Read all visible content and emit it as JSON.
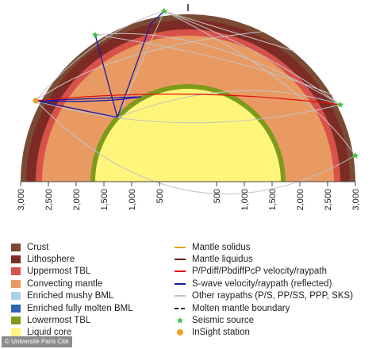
{
  "colors": {
    "crust": "#7a4a35",
    "lithosphere": "#7d2b25",
    "uppermost_tbl": "#d8524a",
    "convecting_mantle": "#e99a62",
    "enriched_mushy_bml": "#a9d2ea",
    "enriched_molten_bml": "#2d63b0",
    "lowermost_tbl": "#7e9a1b",
    "liquid_core": "#fff57a",
    "solidus": "#e8a020",
    "liquidus": "#6b1515",
    "p_ray": "#e01010",
    "s_ray": "#1a1aa8",
    "other_ray": "#c4c4c4",
    "molten_boundary": "#222222",
    "seismic_source": "#3fbf3f",
    "insight_station": "#f0a020"
  },
  "scale": {
    "left_ticks": [
      "3,000",
      "2,500",
      "2,000",
      "1,500",
      "1,000",
      "500"
    ],
    "right_ticks": [
      "500",
      "1,000",
      "1,500",
      "2,000",
      "2,500",
      "3,000"
    ]
  },
  "legend_left": [
    {
      "label": "Crust",
      "color": "crust"
    },
    {
      "label": "Lithosphere",
      "color": "lithosphere"
    },
    {
      "label": "Uppermost TBL",
      "color": "uppermost_tbl"
    },
    {
      "label": "Convecting mantle",
      "color": "convecting_mantle"
    },
    {
      "label": "Enriched mushy BML",
      "color": "enriched_mushy_bml"
    },
    {
      "label": "Enriched fully molten BML",
      "color": "enriched_molten_bml"
    },
    {
      "label": "Lowermost TBL",
      "color": "lowermost_tbl"
    },
    {
      "label": "Liquid core",
      "color": "liquid_core"
    }
  ],
  "legend_right": [
    {
      "label": "Mantle solidus",
      "glyph": "line",
      "color": "solidus"
    },
    {
      "label": "Mantle liquidus",
      "glyph": "line",
      "color": "liquidus"
    },
    {
      "label": "P/Pdiff/PbdiffPcP velocity/raypath",
      "glyph": "line",
      "color": "p_ray"
    },
    {
      "label": "S-wave velocity/raypath (reflected)",
      "glyph": "line",
      "color": "s_ray"
    },
    {
      "label": "Other raypaths (P/S, PP/SS, PPP, SKS)",
      "glyph": "line",
      "color": "other_ray"
    },
    {
      "label": "Molten mantle boundary",
      "glyph": "dashed",
      "color": "molten_boundary"
    },
    {
      "label": "Seismic source",
      "glyph": "star",
      "color": "seismic_source"
    },
    {
      "label": "InSight station",
      "glyph": "dot",
      "color": "insight_station"
    }
  ],
  "credit": "© Université Paris Cité"
}
